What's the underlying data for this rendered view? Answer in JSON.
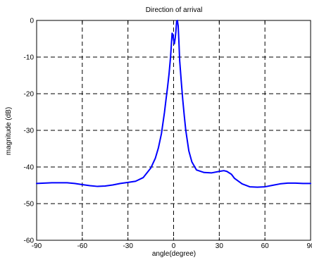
{
  "chart_data": {
    "type": "line",
    "title": "Direction of arrival",
    "xlabel": "angle(degree)",
    "ylabel": "magnitude (dB)",
    "xlim": [
      -90,
      90
    ],
    "ylim": [
      -60,
      0
    ],
    "xticks": [
      -90,
      -60,
      -30,
      0,
      30,
      60,
      90
    ],
    "yticks": [
      0,
      -10,
      -20,
      -30,
      -40,
      -50,
      -60
    ],
    "xtick_labels": [
      "-90",
      "-60",
      "-30",
      "0",
      "30",
      "60",
      "90"
    ],
    "ytick_labels": [
      "0",
      "-10",
      "-20",
      "-30",
      "-40",
      "-50",
      "-60"
    ],
    "grid": true,
    "grid_style": "dashed",
    "line_color": "#0000ff",
    "series": [
      {
        "x": [
          -90,
          -85,
          -80,
          -75,
          -70,
          -65,
          -60,
          -55,
          -50,
          -45,
          -40,
          -35,
          -30,
          -25,
          -20,
          -15,
          -12,
          -10,
          -8,
          -6,
          -5,
          -4,
          -3,
          -2,
          -1.5,
          -1,
          -0.5,
          0,
          0.5,
          1,
          1.5,
          2,
          2.5,
          3,
          3.5,
          4,
          5,
          6,
          7,
          8,
          10,
          12,
          15,
          20,
          25,
          30,
          33,
          35,
          38,
          40,
          45,
          50,
          55,
          60,
          65,
          70,
          75,
          80,
          85,
          90
        ],
        "y": [
          -44.5,
          -44.4,
          -44.3,
          -44.3,
          -44.3,
          -44.5,
          -44.8,
          -45.1,
          -45.3,
          -45.2,
          -44.9,
          -44.5,
          -44.2,
          -43.9,
          -42.9,
          -40.3,
          -37.6,
          -34.8,
          -30.9,
          -25.1,
          -21.6,
          -18.3,
          -14.6,
          -9.9,
          -6.8,
          -3.5,
          -3.8,
          -5.3,
          -6.4,
          -5.0,
          -3.0,
          -0.2,
          0.0,
          -1.5,
          -6.0,
          -11.0,
          -16.5,
          -21.6,
          -26.0,
          -30.0,
          -35.6,
          -38.6,
          -40.8,
          -41.5,
          -41.6,
          -41.2,
          -41.0,
          -41.2,
          -42.0,
          -43.1,
          -44.6,
          -45.4,
          -45.5,
          -45.4,
          -45.0,
          -44.6,
          -44.4,
          -44.4,
          -44.5,
          -44.5
        ]
      }
    ]
  }
}
